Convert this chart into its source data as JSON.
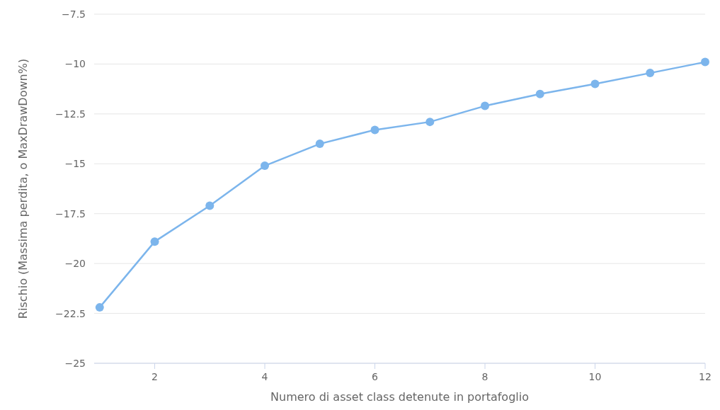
{
  "chart_data": {
    "type": "line",
    "xlabel": "Numero di asset class detenute in portafoglio",
    "ylabel": "Rischio (Massima perdita, o MaxDrawDown%)",
    "x": [
      1,
      2,
      3,
      4,
      5,
      6,
      7,
      8,
      9,
      10,
      11,
      12
    ],
    "series": [
      {
        "color": "#7cb5ec",
        "values": [
          -22.2,
          -18.9,
          -17.1,
          -15.1,
          -14.0,
          -13.3,
          -12.9,
          -12.1,
          -11.5,
          -11.0,
          -10.45,
          -9.9
        ]
      }
    ],
    "xlim": [
      0.9,
      12
    ],
    "xticks": [
      2,
      4,
      6,
      8,
      10,
      12
    ],
    "ylim": [
      -25,
      -7.5
    ],
    "yticks": [
      {
        "value": -25,
        "label": "−25"
      },
      {
        "value": -22.5,
        "label": "−22.5"
      },
      {
        "value": -20,
        "label": "−20"
      },
      {
        "value": -17.5,
        "label": "−17.5"
      },
      {
        "value": -15,
        "label": "−15"
      },
      {
        "value": -12.5,
        "label": "−12.5"
      },
      {
        "value": -10,
        "label": "−10"
      },
      {
        "value": -7.5,
        "label": "−7.5"
      }
    ],
    "grid": "y",
    "marker": "circle",
    "line_style": "solid"
  }
}
